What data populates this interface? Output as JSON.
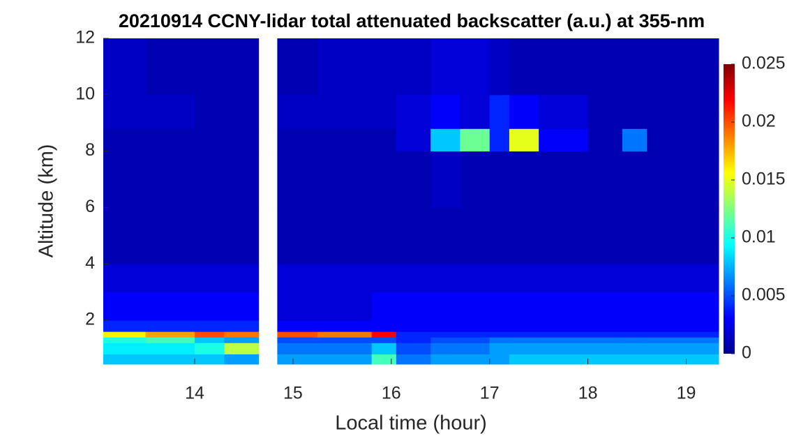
{
  "chart_data": {
    "type": "heatmap",
    "title": "20210914 CCNY-lidar total attenuated backscatter (a.u.) at 355-nm",
    "x_label": "Local time (hour)",
    "y_label": "Altitude (km)",
    "colormap": "jet",
    "x_edges": [
      13.07,
      13.5,
      14,
      14.3,
      14.65,
      14.84,
      15.25,
      15.8,
      16.05,
      16.4,
      16.7,
      17,
      17.2,
      17.5,
      18,
      18.35,
      18.6,
      19.33
    ],
    "y_edges": [
      0.44,
      0.8,
      1.2,
      1.4,
      1.6,
      2,
      3,
      4,
      6,
      8,
      8.8,
      10,
      12
    ],
    "z": [
      [
        0.008,
        0.008,
        0.008,
        0.007,
        null,
        0.007,
        0.007,
        0.011,
        0.006,
        0.007,
        0.007,
        0.007,
        0.008,
        0.008,
        0.008,
        0.008,
        0.008
      ],
      [
        0.009,
        0.009,
        0.01,
        0.014,
        null,
        0.006,
        0.006,
        0.008,
        0.005,
        0.006,
        0.006,
        0.007,
        0.007,
        0.007,
        0.007,
        0.007,
        0.007
      ],
      [
        0.01,
        0.011,
        0.008,
        0.007,
        null,
        0.005,
        0.005,
        0.005,
        0.004,
        0.005,
        0.005,
        0.006,
        0.006,
        0.006,
        0.006,
        0.006,
        0.006
      ],
      [
        0.016,
        0.018,
        0.02,
        0.019,
        null,
        0.02,
        0.019,
        0.022,
        0.004,
        0.004,
        0.004,
        0.004,
        0.004,
        0.004,
        0.004,
        0.004,
        0.004
      ],
      [
        0.004,
        0.004,
        0.004,
        0.004,
        null,
        0.003,
        0.003,
        0.003,
        0.003,
        0.003,
        0.003,
        0.003,
        0.003,
        0.003,
        0.003,
        0.003,
        0.003
      ],
      [
        0.003,
        0.003,
        0.003,
        0.003,
        null,
        0.002,
        0.002,
        0.003,
        0.003,
        0.003,
        0.003,
        0.003,
        0.003,
        0.003,
        0.003,
        0.003,
        0.003
      ],
      [
        0.002,
        0.002,
        0.002,
        0.002,
        null,
        0.002,
        0.002,
        0.002,
        0.002,
        0.002,
        0.002,
        0.002,
        0.002,
        0.002,
        0.002,
        0.002,
        0.002
      ],
      [
        0.001,
        0.001,
        0.001,
        0.001,
        null,
        0.001,
        0.001,
        0.001,
        0.001,
        0.001,
        0.001,
        0.001,
        0.001,
        0.001,
        0.001,
        0.001,
        0.001
      ],
      [
        0.001,
        0.001,
        0.001,
        0.001,
        null,
        0.001,
        0.001,
        0.001,
        0.001,
        0.0015,
        0.001,
        0.001,
        0.001,
        0.001,
        0.001,
        0.001,
        0.001
      ],
      [
        0.001,
        0.001,
        0.001,
        0.001,
        null,
        0.001,
        0.001,
        0.001,
        0.002,
        0.008,
        0.012,
        0.004,
        0.015,
        0.003,
        0.001,
        0.006,
        0.001
      ],
      [
        0.0015,
        0.0015,
        0.001,
        0.001,
        null,
        0.0015,
        0.0015,
        0.0015,
        0.002,
        0.003,
        0.002,
        0.004,
        0.003,
        0.002,
        0.001,
        0.001,
        0.001
      ],
      [
        0.0015,
        0.001,
        0.001,
        0.001,
        null,
        0.001,
        0.0015,
        0.0015,
        0.0015,
        0.002,
        0.002,
        0.0015,
        0.001,
        0.001,
        0.001,
        0.001,
        0.001
      ]
    ],
    "xlim": [
      13.07,
      19.33
    ],
    "xticks": [
      14,
      15,
      16,
      17,
      18,
      19
    ],
    "ylim": [
      0.44,
      12
    ],
    "yticks": [
      2,
      4,
      6,
      8,
      10,
      12
    ],
    "clim": [
      0,
      0.025
    ],
    "cticks": [
      0,
      0.005,
      0.01,
      0.015,
      0.02,
      0.025
    ]
  }
}
